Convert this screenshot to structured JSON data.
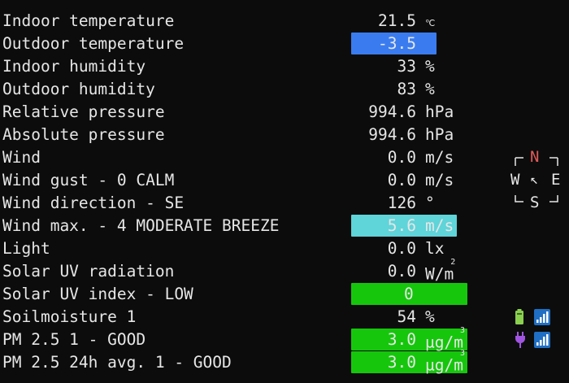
{
  "colors": {
    "background": "#0c0c0c",
    "text": "#e6e6e6",
    "highlight_blue": "#3a7cf0",
    "highlight_cyan": "#5fd4d9",
    "highlight_green": "#16c60c",
    "compass_north": "#e05a5a",
    "battery_green": "#8bd04f",
    "signal_blue": "#1f6fc4",
    "plug_purple": "#a054e0"
  },
  "rows": [
    {
      "label": "Indoor temperature",
      "value": "21.5",
      "unit": "℃",
      "unit_small": true
    },
    {
      "label": "Outdoor temperature",
      "value": "-3.5",
      "unit": "℃",
      "unit_small": true,
      "highlight": "highlight_blue"
    },
    {
      "label": "Indoor humidity",
      "value": "33",
      "unit": "%"
    },
    {
      "label": "Outdoor humidity",
      "value": "83",
      "unit": "%"
    },
    {
      "label": "Relative pressure",
      "value": "994.6",
      "unit": "hPa"
    },
    {
      "label": "Absolute pressure",
      "value": "994.6",
      "unit": "hPa"
    },
    {
      "label": "Wind",
      "value": "0.0",
      "unit": "m/s"
    },
    {
      "label": "Wind gust - 0 CALM",
      "value": "0.0",
      "unit": "m/s"
    },
    {
      "label": "Wind direction - SE",
      "value": "126",
      "unit": "°"
    },
    {
      "label": "Wind max. - 4 MODERATE BREEZE",
      "value": "5.6",
      "unit": "m/s",
      "highlight": "highlight_cyan"
    },
    {
      "label": "Light",
      "value": "0.0",
      "unit": "lx"
    },
    {
      "label": "Solar UV radiation",
      "value": "0.0",
      "unit": "W/m",
      "unit_sup": "2"
    },
    {
      "label": "Solar UV index - LOW",
      "value": "0",
      "unit": "",
      "highlight": "highlight_green",
      "center_value": true
    },
    {
      "label": "Soilmoisture 1",
      "value": "54",
      "unit": "%"
    },
    {
      "label": "PM 2.5 1 - GOOD",
      "value": "3.0",
      "unit": "µg/m",
      "unit_sup": "3",
      "highlight": "highlight_green"
    },
    {
      "label": "PM 2.5 24h avg. 1 - GOOD",
      "value": "3.0",
      "unit": "µg/m",
      "unit_sup": "3",
      "highlight": "highlight_green"
    }
  ],
  "compass": {
    "north": "N",
    "south": "S",
    "west": "W",
    "east": "E",
    "arrow": "↖"
  },
  "status_icons": [
    {
      "row": 13,
      "icons": [
        "battery-icon",
        "signal-bars-icon"
      ]
    },
    {
      "row": 14,
      "icons": [
        "power-plug-icon",
        "signal-bars-icon"
      ]
    }
  ]
}
